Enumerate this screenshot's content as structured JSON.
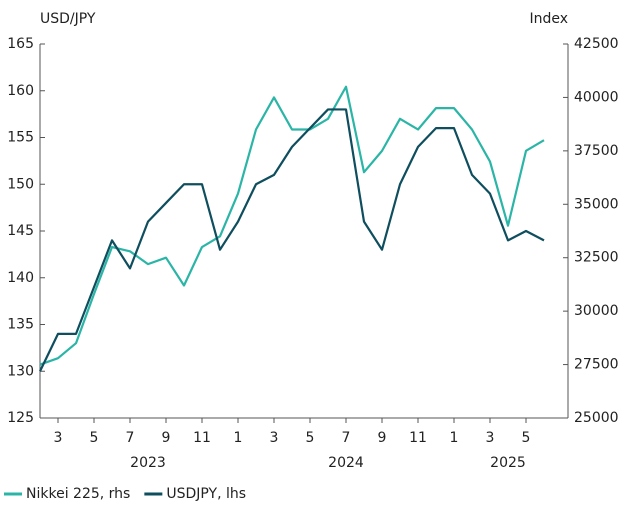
{
  "chart_data": {
    "type": "line",
    "y_label": "USD/JPY",
    "y2_label": "Index",
    "x": [
      "2023-02",
      "2023-03",
      "2023-04",
      "2023-05",
      "2023-06",
      "2023-07",
      "2023-08",
      "2023-09",
      "2023-10",
      "2023-11",
      "2023-12",
      "2024-01",
      "2024-02",
      "2024-03",
      "2024-04",
      "2024-05",
      "2024-06",
      "2024-07",
      "2024-08",
      "2024-09",
      "2024-10",
      "2024-11",
      "2024-12",
      "2025-01",
      "2025-02",
      "2025-03",
      "2025-04",
      "2025-05",
      "2025-06"
    ],
    "series": [
      {
        "name": "Nikkei 225, rhs",
        "color": "#2bb5a7",
        "axis": "y2",
        "values": [
          27500,
          27800,
          28500,
          30800,
          33000,
          32800,
          32200,
          32500,
          31200,
          33000,
          33500,
          35500,
          38500,
          40000,
          38500,
          38500,
          39000,
          40500,
          36500,
          37500,
          39000,
          38500,
          39500,
          39500,
          38500,
          37000,
          34000,
          37500,
          38000
        ]
      },
      {
        "name": "USDJPY, lhs",
        "color": "#0e4e5e",
        "values": [
          130,
          134,
          134,
          139,
          144,
          141,
          146,
          148,
          150,
          150,
          143,
          146,
          150,
          151,
          154,
          156,
          158,
          158,
          146,
          143,
          150,
          154,
          156,
          156,
          151,
          149,
          144,
          145,
          144
        ]
      }
    ],
    "xticks": [
      {
        "value": "2023-03",
        "label": "3"
      },
      {
        "value": "2023-05",
        "label": "5"
      },
      {
        "value": "2023-07",
        "label": "7"
      },
      {
        "value": "2023-09",
        "label": "9"
      },
      {
        "value": "2023-11",
        "label": "11"
      },
      {
        "value": "2024-01",
        "label": "1"
      },
      {
        "value": "2024-03",
        "label": "3"
      },
      {
        "value": "2024-05",
        "label": "5"
      },
      {
        "value": "2024-07",
        "label": "7"
      },
      {
        "value": "2024-09",
        "label": "9"
      },
      {
        "value": "2024-11",
        "label": "11"
      },
      {
        "value": "2025-01",
        "label": "1"
      },
      {
        "value": "2025-03",
        "label": "3"
      },
      {
        "value": "2025-05",
        "label": "5"
      }
    ],
    "year_labels": [
      {
        "value": "2023-08",
        "label": "2023"
      },
      {
        "value": "2024-07",
        "label": "2024"
      },
      {
        "value": "2025-04",
        "label": "2025"
      }
    ],
    "ylim": [
      125,
      165
    ],
    "yticks": [
      125,
      130,
      135,
      140,
      145,
      150,
      155,
      160,
      165
    ],
    "y2lim": [
      25000,
      42500
    ],
    "y2ticks": [
      25000,
      27500,
      30000,
      32500,
      35000,
      37500,
      40000,
      42500
    ],
    "legend": "bottom"
  }
}
